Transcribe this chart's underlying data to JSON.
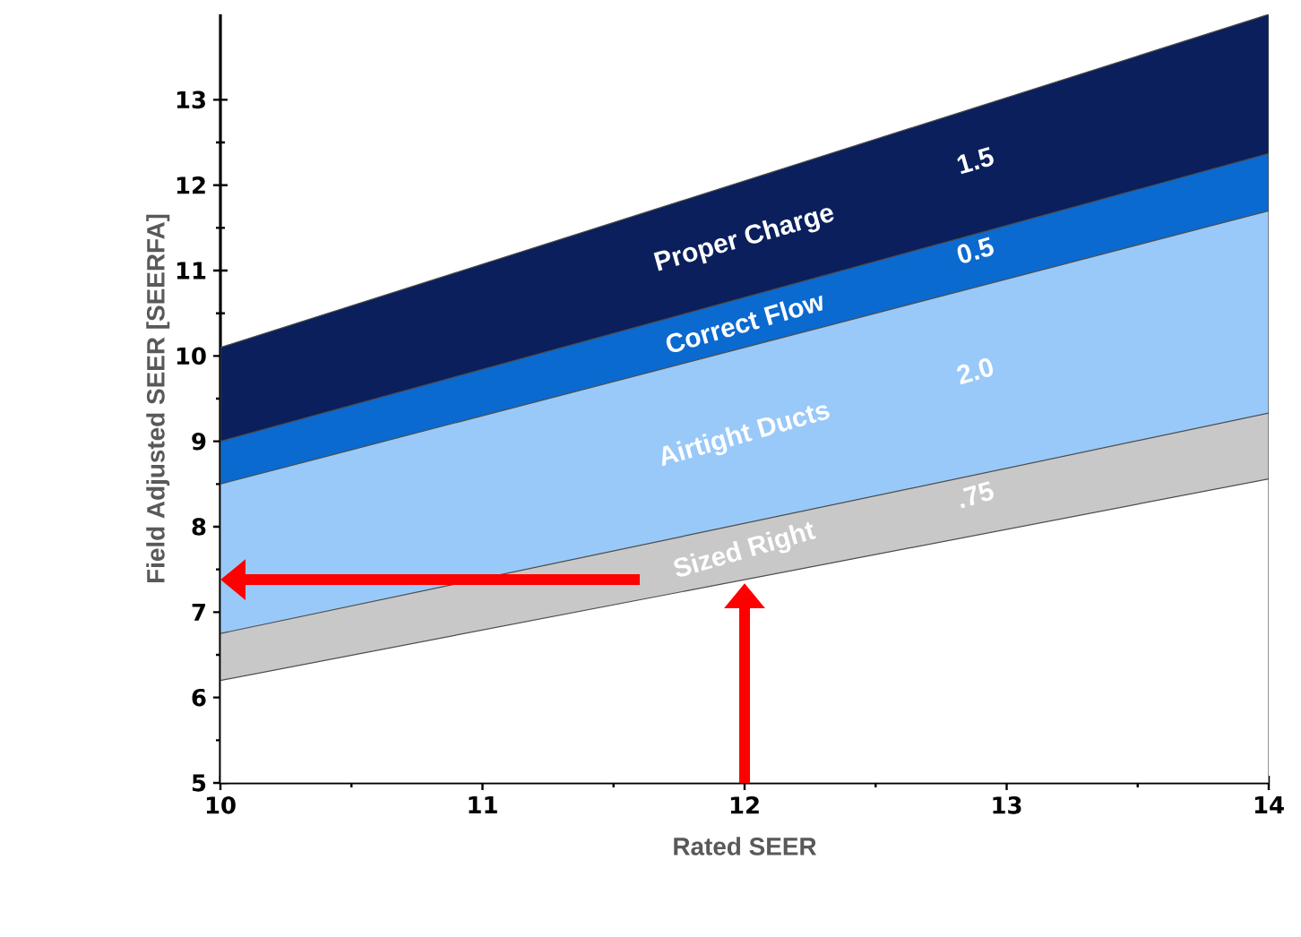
{
  "chart_data": {
    "type": "area",
    "xlabel": "Rated SEER",
    "ylabel": "Field Adjusted SEER [SEERFA]",
    "x": [
      10,
      14
    ],
    "series": [
      {
        "name": "Proper Charge",
        "color": "#0a1f5c",
        "values": [
          10.1,
          14.0
        ]
      },
      {
        "name": "Correct Flow",
        "color": "#0a6ad0",
        "values": [
          9.0,
          12.37
        ]
      },
      {
        "name": "Airtight Ducts",
        "color": "#99c9f8",
        "values": [
          8.5,
          11.7
        ]
      },
      {
        "name": "Sized Right",
        "color": "#c8c8c8",
        "values": [
          6.75,
          9.33
        ]
      },
      {
        "color": "#ffffff",
        "values": [
          6.2,
          8.56
        ]
      }
    ],
    "annotations": [
      "1.5",
      "0.5",
      "2.0",
      ".75"
    ],
    "xlim": [
      10,
      14
    ],
    "xticks": [
      10,
      11,
      12,
      13,
      14
    ],
    "ylim": [
      5,
      14
    ],
    "yticks": [
      5,
      6,
      7,
      8,
      9,
      10,
      11,
      12,
      13
    ],
    "grid": false,
    "legend": false
  }
}
